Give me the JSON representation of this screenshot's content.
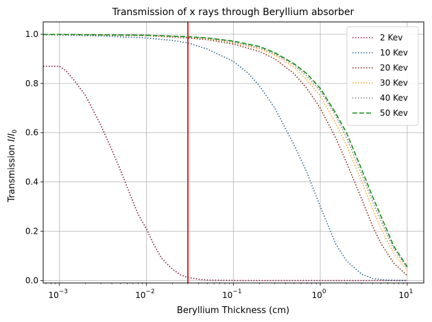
{
  "chart_data": {
    "type": "line",
    "title": "Transmission of x rays through Beryllium absorber",
    "xlabel": "Beryllium Thickness (cm)",
    "ylabel_prefix": "Transmission ",
    "ylabel_math_base": "I",
    "ylabel_math_sep": "/",
    "ylabel_math_den": "I",
    "ylabel_math_sub": "0",
    "x_scale": "log",
    "xlim": [
      0.00065,
      15.5
    ],
    "ylim": [
      -0.01,
      1.05
    ],
    "x_ticks": [
      {
        "value": 0.001,
        "base": "10",
        "exp": "−3"
      },
      {
        "value": 0.01,
        "base": "10",
        "exp": "−2"
      },
      {
        "value": 0.1,
        "base": "10",
        "exp": "−1"
      },
      {
        "value": 1,
        "base": "10",
        "exp": "0"
      },
      {
        "value": 10,
        "base": "10",
        "exp": "1"
      }
    ],
    "y_ticks": [
      {
        "value": 0.0,
        "label": "0.0"
      },
      {
        "value": 0.2,
        "label": "0.2"
      },
      {
        "value": 0.4,
        "label": "0.4"
      },
      {
        "value": 0.6,
        "label": "0.6"
      },
      {
        "value": 0.8,
        "label": "0.8"
      },
      {
        "value": 1.0,
        "label": "1.0"
      }
    ],
    "grid": true,
    "legend_position": "top-right",
    "vertical_line": {
      "x": 0.03,
      "color": "#d62728"
    },
    "series": [
      {
        "name": "2 Kev",
        "color": "#7b0a2a",
        "style": "dotted",
        "x": [
          0.00065,
          0.001,
          0.0012,
          0.0015,
          0.002,
          0.003,
          0.004,
          0.005,
          0.006,
          0.007,
          0.008,
          0.01,
          0.012,
          0.015,
          0.02,
          0.025,
          0.03,
          0.04,
          0.05,
          0.1,
          1,
          10
        ],
        "y": [
          0.87,
          0.87,
          0.85,
          0.81,
          0.75,
          0.63,
          0.53,
          0.45,
          0.38,
          0.32,
          0.27,
          0.21,
          0.15,
          0.09,
          0.045,
          0.022,
          0.012,
          0.005,
          0.002,
          0.0,
          0.0,
          0.0
        ]
      },
      {
        "name": "10 Kev",
        "color": "#1f5f8b",
        "style": "dotted",
        "x": [
          0.00065,
          0.001,
          0.003,
          0.01,
          0.02,
          0.03,
          0.05,
          0.1,
          0.15,
          0.2,
          0.3,
          0.5,
          0.7,
          1.0,
          1.5,
          2,
          3,
          4,
          6,
          10
        ],
        "y": [
          0.998,
          0.997,
          0.993,
          0.985,
          0.975,
          0.965,
          0.94,
          0.89,
          0.84,
          0.79,
          0.7,
          0.55,
          0.44,
          0.3,
          0.15,
          0.08,
          0.025,
          0.008,
          0.001,
          0.0
        ]
      },
      {
        "name": "20 Kev",
        "color": "#7b1d00",
        "style": "dotted",
        "x": [
          0.00065,
          0.001,
          0.01,
          0.03,
          0.05,
          0.1,
          0.2,
          0.3,
          0.5,
          0.7,
          1.0,
          1.5,
          2,
          3,
          4,
          5,
          7,
          10
        ],
        "y": [
          0.999,
          0.999,
          0.994,
          0.985,
          0.978,
          0.96,
          0.93,
          0.9,
          0.84,
          0.78,
          0.7,
          0.58,
          0.48,
          0.33,
          0.22,
          0.15,
          0.07,
          0.02
        ]
      },
      {
        "name": "30 Kev",
        "color": "#ff9f1c",
        "style": "dotted",
        "x": [
          0.00065,
          0.001,
          0.01,
          0.03,
          0.05,
          0.1,
          0.2,
          0.3,
          0.5,
          0.7,
          1.0,
          1.5,
          2,
          3,
          4,
          5,
          7,
          10
        ],
        "y": [
          0.999,
          0.999,
          0.995,
          0.988,
          0.982,
          0.966,
          0.94,
          0.915,
          0.865,
          0.815,
          0.75,
          0.64,
          0.55,
          0.4,
          0.29,
          0.21,
          0.11,
          0.04
        ]
      },
      {
        "name": "40 Kev",
        "color": "#7f7f7f",
        "style": "dotted",
        "x": [
          0.00065,
          0.001,
          0.01,
          0.03,
          0.05,
          0.1,
          0.2,
          0.3,
          0.5,
          0.7,
          1.0,
          1.5,
          2,
          3,
          4,
          5,
          7,
          10
        ],
        "y": [
          0.999,
          0.999,
          0.996,
          0.989,
          0.984,
          0.969,
          0.945,
          0.92,
          0.875,
          0.83,
          0.77,
          0.67,
          0.58,
          0.43,
          0.32,
          0.24,
          0.13,
          0.05
        ]
      },
      {
        "name": "50 Kev",
        "color": "#138a13",
        "style": "dashed",
        "x": [
          0.00065,
          0.001,
          0.01,
          0.03,
          0.05,
          0.1,
          0.2,
          0.3,
          0.5,
          0.7,
          1.0,
          1.5,
          2,
          3,
          4,
          5,
          7,
          10
        ],
        "y": [
          0.999,
          0.999,
          0.996,
          0.99,
          0.985,
          0.972,
          0.95,
          0.925,
          0.88,
          0.84,
          0.78,
          0.68,
          0.6,
          0.45,
          0.34,
          0.26,
          0.14,
          0.055
        ]
      }
    ]
  }
}
